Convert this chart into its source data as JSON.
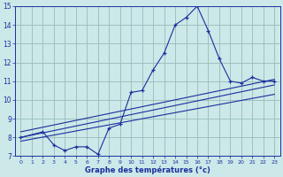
{
  "xlabel": "Graphe des températures (°c)",
  "background_color": "#cce8e8",
  "grid_color": "#99bbbb",
  "line_color": "#1a2f9e",
  "xlim": [
    -0.5,
    23.5
  ],
  "ylim": [
    7,
    15
  ],
  "xticks": [
    0,
    1,
    2,
    3,
    4,
    5,
    6,
    7,
    8,
    9,
    10,
    11,
    12,
    13,
    14,
    15,
    16,
    17,
    18,
    19,
    20,
    21,
    22,
    23
  ],
  "yticks": [
    7,
    8,
    9,
    10,
    11,
    12,
    13,
    14,
    15
  ],
  "line1_x": [
    0,
    2,
    3,
    4,
    5,
    6,
    7,
    8,
    9,
    10,
    11,
    12,
    13,
    14,
    15,
    16,
    17,
    18,
    19,
    20,
    21,
    22,
    23
  ],
  "line1_y": [
    8.0,
    8.3,
    7.6,
    7.3,
    7.5,
    7.5,
    7.1,
    8.5,
    8.7,
    10.4,
    10.5,
    11.6,
    12.5,
    14.0,
    14.4,
    15.0,
    13.7,
    12.2,
    11.0,
    10.9,
    11.2,
    11.0,
    11.0
  ],
  "line2_x": [
    0,
    23
  ],
  "line2_y": [
    7.8,
    10.3
  ],
  "line3_x": [
    0,
    23
  ],
  "line3_y": [
    8.0,
    10.8
  ],
  "line4_x": [
    0,
    23
  ],
  "line4_y": [
    8.3,
    11.1
  ]
}
